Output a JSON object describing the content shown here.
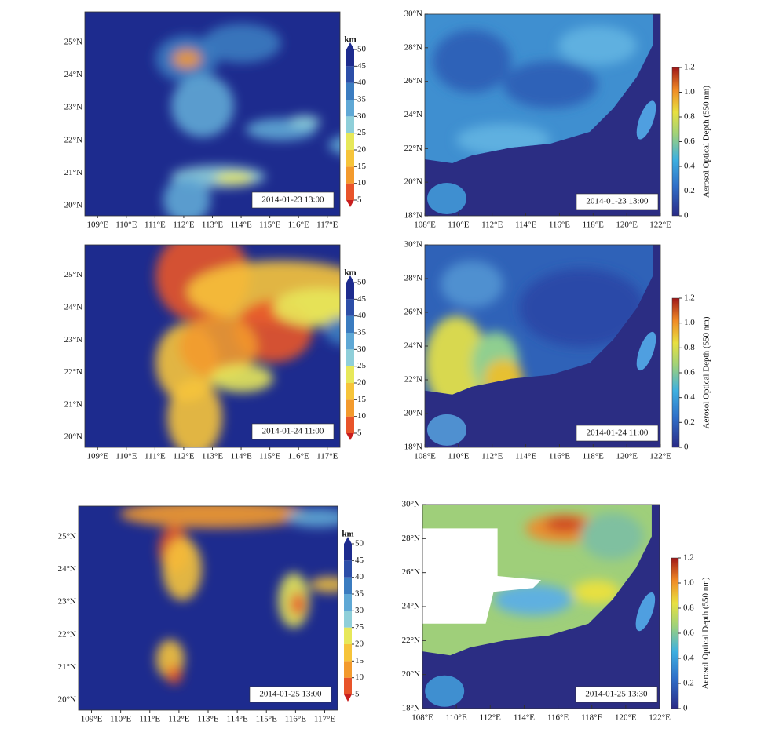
{
  "visibility_maps": {
    "unit": "km",
    "colorbar_ticks": [
      5,
      10,
      15,
      20,
      25,
      30,
      35,
      40,
      45,
      50
    ],
    "lon_labels": [
      "109°E",
      "110°E",
      "111°E",
      "112°E",
      "113°E",
      "114°E",
      "115°E",
      "116°E",
      "117°E"
    ],
    "lat_labels": [
      "20°N",
      "21°N",
      "22°N",
      "23°N",
      "24°N",
      "25°N"
    ],
    "timestamps": [
      "2014-01-23 13:00",
      "2014-01-24 11:00",
      "2014-01-25 13:00"
    ]
  },
  "aod_maps": {
    "colorbar_label": "Aerosol Optical Depth (550 nm)",
    "colorbar_ticks": [
      0,
      0.2,
      0.4,
      0.6,
      0.8,
      {
        "value": 1,
        "label": "1.0"
      },
      1.2
    ],
    "lon_labels": [
      "108°E",
      "110°E",
      "112°E",
      "114°E",
      "116°E",
      "118°E",
      "120°E",
      "122°E"
    ],
    "lat_labels": [
      "18°N",
      "20°N",
      "22°N",
      "24°N",
      "26°N",
      "28°N",
      "30°N"
    ],
    "timestamps": [
      "2014-01-23 13:00",
      "2014-01-24 11:00",
      "2014-01-25 13:30"
    ]
  }
}
